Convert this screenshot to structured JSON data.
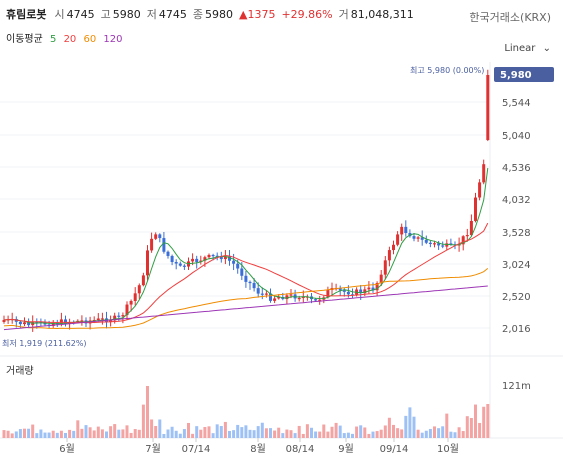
{
  "header": {
    "name": "휴림로봇",
    "open_label": "시",
    "open": "4745",
    "high_label": "고",
    "high": "5980",
    "low_label": "저",
    "low": "4745",
    "close_label": "종",
    "close": "5980",
    "change": "▲1375",
    "change_pct": "+29.86%",
    "volume_label": "거",
    "volume": "81,048,311"
  },
  "exchange": "한국거래소(KRX)",
  "ma": {
    "label": "이동평균",
    "p5": "5",
    "p20": "20",
    "p60": "60",
    "p120": "120",
    "c5": "#2f9e44",
    "c20": "#f03e3e",
    "c60": "#f08c00",
    "c120": "#9c36b5"
  },
  "scale_select": "Linear",
  "price_axis": [
    "5,544",
    "5,040",
    "4,536",
    "4,032",
    "3,528",
    "3,024",
    "2,520",
    "2,016"
  ],
  "current_price": "5,980",
  "high_marker": "최고 5,980 (0.00%)",
  "low_marker": "최저 1,919 (211.62%)",
  "volume_title": "거래량",
  "volume_axis": "121m",
  "x_labels": [
    "6월",
    "7월",
    "07/14",
    "8월",
    "08/14",
    "9월",
    "09/14",
    "10월"
  ],
  "colors": {
    "up": "#e03131",
    "down": "#3b6fd8",
    "price_tag": "#4a5fa0"
  }
}
